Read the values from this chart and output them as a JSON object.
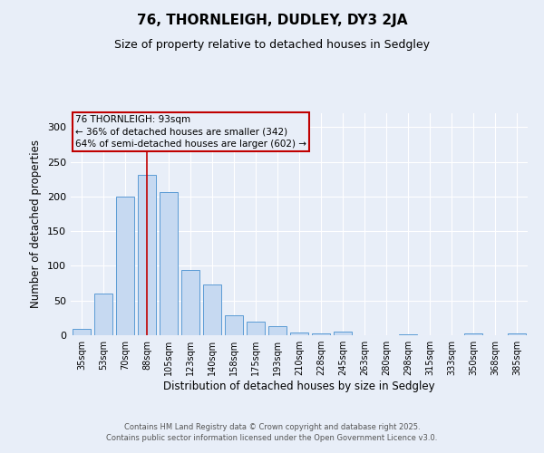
{
  "title": "76, THORNLEIGH, DUDLEY, DY3 2JA",
  "subtitle": "Size of property relative to detached houses in Sedgley",
  "xlabel": "Distribution of detached houses by size in Sedgley",
  "ylabel": "Number of detached properties",
  "categories": [
    "35sqm",
    "53sqm",
    "70sqm",
    "88sqm",
    "105sqm",
    "123sqm",
    "140sqm",
    "158sqm",
    "175sqm",
    "193sqm",
    "210sqm",
    "228sqm",
    "245sqm",
    "263sqm",
    "280sqm",
    "298sqm",
    "315sqm",
    "333sqm",
    "350sqm",
    "368sqm",
    "385sqm"
  ],
  "values": [
    9,
    60,
    200,
    231,
    207,
    94,
    73,
    29,
    20,
    13,
    4,
    3,
    5,
    0,
    0,
    1,
    0,
    0,
    2,
    0,
    2
  ],
  "bar_color": "#c6d9f1",
  "bar_edge_color": "#5b9bd5",
  "vline_index": 3,
  "vline_color": "#c00000",
  "annotation_lines": [
    "76 THORNLEIGH: 93sqm",
    "← 36% of detached houses are smaller (342)",
    "64% of semi-detached houses are larger (602) →"
  ],
  "annotation_box_color": "#c00000",
  "background_color": "#e8eef8",
  "grid_color": "#ffffff",
  "ylim": [
    0,
    320
  ],
  "yticks": [
    0,
    50,
    100,
    150,
    200,
    250,
    300
  ],
  "footer_line1": "Contains HM Land Registry data © Crown copyright and database right 2025.",
  "footer_line2": "Contains public sector information licensed under the Open Government Licence v3.0."
}
